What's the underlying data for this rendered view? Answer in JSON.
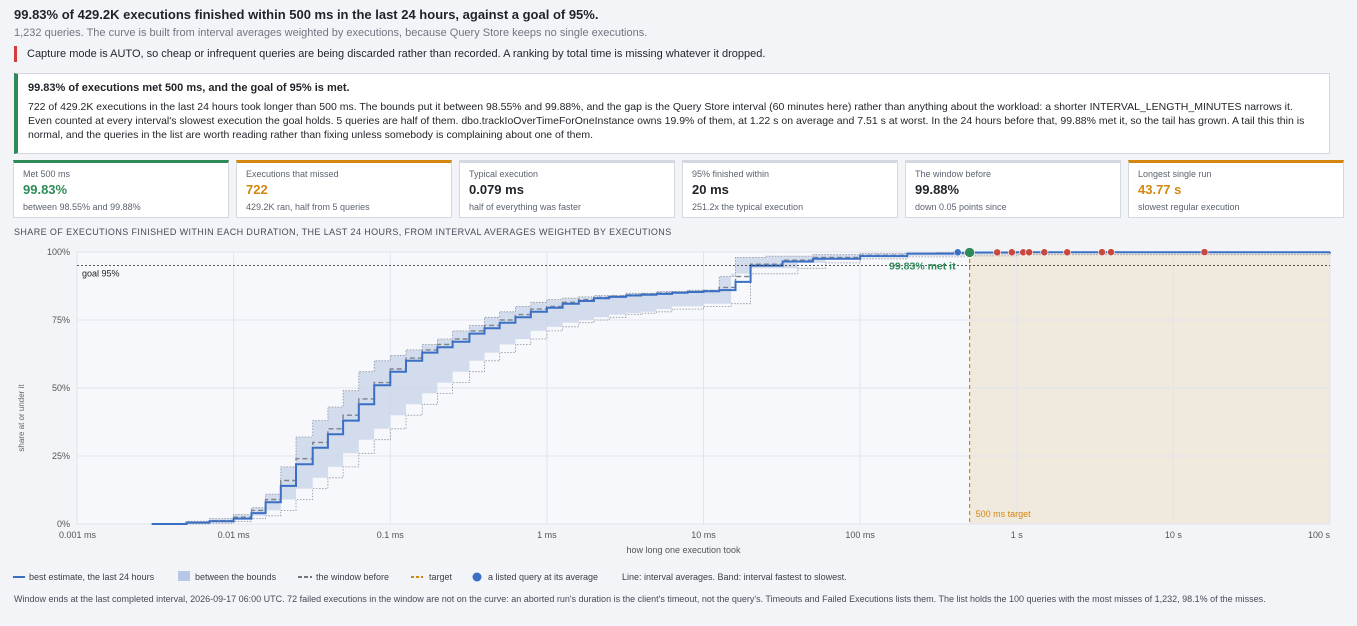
{
  "headline": "99.83% of 429.2K executions finished within 500 ms in the last 24 hours, against a goal of 95%.",
  "subline": "1,232 queries. The curve is built from interval averages weighted by executions, because Query Store keeps no single executions.",
  "warning": "Capture mode is AUTO, so cheap or infrequent queries are being discarded rather than recorded. A ranking by total time is missing whatever it dropped.",
  "verdict": {
    "title": "99.83% of executions met 500 ms, and the goal of 95% is met.",
    "body": "722 of 429.2K executions in the last 24 hours took longer than 500 ms. The bounds put it between 98.55% and 99.88%, and the gap is the Query Store interval (60 minutes here) rather than anything about the workload: a shorter INTERVAL_LENGTH_MINUTES narrows it. Even counted at every interval's slowest execution the goal holds. 5 queries are half of them. dbo.trackIoOverTimeForOneInstance owns 19.9% of them, at 1.22 s on average and 7.51 s at worst. In the 24 hours before that, 99.88% met it, so the tail has grown. A tail this thin is normal, and the queries in the list are worth reading rather than fixing unless somebody is complaining about one of them."
  },
  "cards": [
    {
      "label": "Met 500 ms",
      "value": "99.83%",
      "sub": "between 98.55% and 99.88%",
      "accent": "#2e8b57",
      "value_color": "#2e8b57"
    },
    {
      "label": "Executions that missed",
      "value": "722",
      "sub": "429.2K ran, half from 5 queries",
      "accent": "#d4870f",
      "value_color": "#d4870f"
    },
    {
      "label": "Typical execution",
      "value": "0.079 ms",
      "sub": "half of everything was faster",
      "accent": "#d4d8e0",
      "value_color": "#1f2328"
    },
    {
      "label": "95% finished within",
      "value": "20 ms",
      "sub": "251.2x the typical execution",
      "accent": "#d4d8e0",
      "value_color": "#1f2328"
    },
    {
      "label": "The window before",
      "value": "99.88%",
      "sub": "down 0.05 points since",
      "accent": "#d4d8e0",
      "value_color": "#1f2328"
    },
    {
      "label": "Longest single run",
      "value": "43.77 s",
      "sub": "slowest regular execution",
      "accent": "#d4870f",
      "value_color": "#d4870f"
    }
  ],
  "chart_title": "SHARE OF EXECUTIONS FINISHED WITHIN EACH DURATION, THE LAST 24 HOURS, FROM INTERVAL AVERAGES WEIGHTED BY EXECUTIONS",
  "chart_data": {
    "type": "line",
    "xscale": "log",
    "xlim_ms": [
      0.001,
      100000
    ],
    "ylim": [
      0,
      100
    ],
    "xlabel": "how long one execution took",
    "ylabel": "share at or under it",
    "x_ticks": [
      {
        "ms": 0.001,
        "label": "0.001 ms"
      },
      {
        "ms": 0.01,
        "label": "0.01 ms"
      },
      {
        "ms": 0.1,
        "label": "0.1 ms"
      },
      {
        "ms": 1,
        "label": "1 ms"
      },
      {
        "ms": 10,
        "label": "10 ms"
      },
      {
        "ms": 100,
        "label": "100 ms"
      },
      {
        "ms": 1000,
        "label": "1 s"
      },
      {
        "ms": 10000,
        "label": "10 s"
      },
      {
        "ms": 100000,
        "label": "100 s"
      }
    ],
    "y_ticks": [
      {
        "v": 0,
        "label": "0%"
      },
      {
        "v": 25,
        "label": "25%"
      },
      {
        "v": 50,
        "label": "50%"
      },
      {
        "v": 75,
        "label": "75%"
      },
      {
        "v": 100,
        "label": "100%"
      }
    ],
    "goal": {
      "value": 95,
      "label": "goal 95%"
    },
    "target": {
      "ms": 500,
      "label": "500 ms target"
    },
    "met_annotation": {
      "ms": 500,
      "value": 99.83,
      "label": "99.83% met it"
    },
    "best_estimate": [
      [
        0.003,
        0
      ],
      [
        0.005,
        0.5
      ],
      [
        0.007,
        1
      ],
      [
        0.01,
        2
      ],
      [
        0.013,
        4
      ],
      [
        0.016,
        8
      ],
      [
        0.02,
        14
      ],
      [
        0.025,
        22
      ],
      [
        0.032,
        28
      ],
      [
        0.04,
        33
      ],
      [
        0.05,
        38
      ],
      [
        0.063,
        44
      ],
      [
        0.079,
        51
      ],
      [
        0.1,
        56
      ],
      [
        0.126,
        60
      ],
      [
        0.16,
        63
      ],
      [
        0.2,
        65
      ],
      [
        0.25,
        67
      ],
      [
        0.32,
        70
      ],
      [
        0.4,
        72
      ],
      [
        0.5,
        74
      ],
      [
        0.63,
        76
      ],
      [
        0.79,
        78
      ],
      [
        1,
        79.5
      ],
      [
        1.26,
        81
      ],
      [
        1.6,
        82
      ],
      [
        2,
        83
      ],
      [
        2.5,
        83.5
      ],
      [
        3.2,
        84
      ],
      [
        4,
        84.3
      ],
      [
        5,
        84.6
      ],
      [
        6.3,
        85
      ],
      [
        7.9,
        85.3
      ],
      [
        10,
        85.6
      ],
      [
        12.6,
        86
      ],
      [
        16,
        89
      ],
      [
        20,
        95
      ],
      [
        32,
        96.5
      ],
      [
        50,
        97.5
      ],
      [
        100,
        98.5
      ],
      [
        200,
        99.4
      ],
      [
        400,
        99.7
      ],
      [
        500,
        99.83
      ],
      [
        1000,
        99.9
      ],
      [
        100000,
        100
      ]
    ],
    "bounds_upper": [
      [
        0.003,
        0
      ],
      [
        0.005,
        1
      ],
      [
        0.007,
        2
      ],
      [
        0.01,
        3.5
      ],
      [
        0.013,
        6
      ],
      [
        0.016,
        11
      ],
      [
        0.02,
        21
      ],
      [
        0.025,
        32
      ],
      [
        0.032,
        38
      ],
      [
        0.04,
        43
      ],
      [
        0.05,
        49
      ],
      [
        0.063,
        56
      ],
      [
        0.079,
        60
      ],
      [
        0.1,
        62
      ],
      [
        0.126,
        64
      ],
      [
        0.16,
        66
      ],
      [
        0.2,
        68
      ],
      [
        0.25,
        71
      ],
      [
        0.32,
        73
      ],
      [
        0.4,
        76
      ],
      [
        0.5,
        78
      ],
      [
        0.63,
        80
      ],
      [
        0.79,
        81.5
      ],
      [
        1,
        82.5
      ],
      [
        1.26,
        83
      ],
      [
        1.6,
        83.5
      ],
      [
        2,
        84
      ],
      [
        3.2,
        84.8
      ],
      [
        5,
        85.5
      ],
      [
        7.9,
        86
      ],
      [
        12.6,
        91
      ],
      [
        16,
        98
      ],
      [
        25,
        98.5
      ],
      [
        50,
        99
      ],
      [
        100,
        99.5
      ],
      [
        300,
        99.8
      ],
      [
        500,
        99.88
      ],
      [
        100000,
        100
      ]
    ],
    "bounds_lower": [
      [
        0.005,
        0
      ],
      [
        0.007,
        0.3
      ],
      [
        0.01,
        1
      ],
      [
        0.013,
        2
      ],
      [
        0.016,
        3
      ],
      [
        0.02,
        5
      ],
      [
        0.025,
        9
      ],
      [
        0.032,
        13
      ],
      [
        0.04,
        17
      ],
      [
        0.05,
        21
      ],
      [
        0.063,
        26
      ],
      [
        0.079,
        31
      ],
      [
        0.1,
        35
      ],
      [
        0.126,
        40
      ],
      [
        0.16,
        44
      ],
      [
        0.2,
        48
      ],
      [
        0.25,
        52
      ],
      [
        0.32,
        56
      ],
      [
        0.4,
        60
      ],
      [
        0.5,
        63
      ],
      [
        0.63,
        66
      ],
      [
        0.79,
        68
      ],
      [
        1,
        71
      ],
      [
        1.26,
        72.5
      ],
      [
        1.6,
        74
      ],
      [
        2,
        75
      ],
      [
        2.5,
        76
      ],
      [
        3.2,
        77
      ],
      [
        4,
        77.5
      ],
      [
        5,
        78
      ],
      [
        6.3,
        79
      ],
      [
        10,
        80
      ],
      [
        15,
        81
      ],
      [
        20,
        92
      ],
      [
        40,
        94
      ],
      [
        60,
        96
      ],
      [
        100,
        97.5
      ],
      [
        200,
        98.2
      ],
      [
        500,
        98.55
      ],
      [
        1000,
        99
      ],
      [
        100000,
        100
      ]
    ],
    "window_before": [
      [
        0.003,
        0
      ],
      [
        0.005,
        0.6
      ],
      [
        0.007,
        1.2
      ],
      [
        0.01,
        2.5
      ],
      [
        0.013,
        5
      ],
      [
        0.016,
        9
      ],
      [
        0.02,
        16
      ],
      [
        0.025,
        24
      ],
      [
        0.032,
        30
      ],
      [
        0.04,
        35
      ],
      [
        0.05,
        40
      ],
      [
        0.063,
        46
      ],
      [
        0.079,
        52
      ],
      [
        0.1,
        57
      ],
      [
        0.126,
        61
      ],
      [
        0.16,
        64
      ],
      [
        0.2,
        66
      ],
      [
        0.25,
        68
      ],
      [
        0.32,
        71
      ],
      [
        0.4,
        73
      ],
      [
        0.5,
        75
      ],
      [
        0.63,
        77
      ],
      [
        0.79,
        79
      ],
      [
        1,
        80
      ],
      [
        1.26,
        81.5
      ],
      [
        1.6,
        82.5
      ],
      [
        2,
        83.3
      ],
      [
        2.5,
        83.8
      ],
      [
        3.2,
        84.2
      ],
      [
        4,
        84.6
      ],
      [
        5,
        84.9
      ],
      [
        6.3,
        85.2
      ],
      [
        7.9,
        85.5
      ],
      [
        10,
        85.8
      ],
      [
        12.6,
        87
      ],
      [
        16,
        91
      ],
      [
        20,
        95.5
      ],
      [
        32,
        97
      ],
      [
        50,
        98
      ],
      [
        100,
        98.8
      ],
      [
        200,
        99.5
      ],
      [
        500,
        99.88
      ],
      [
        1000,
        99.92
      ],
      [
        100000,
        100
      ]
    ],
    "listed_queries": [
      {
        "ms": 420,
        "value": 99.9,
        "color": "#3a6fc4"
      },
      {
        "ms": 500,
        "value": 99.83,
        "color": "#2e8b57"
      },
      {
        "ms": 750,
        "value": 99.86,
        "color": "#c8483d"
      },
      {
        "ms": 930,
        "value": 99.87,
        "color": "#c8483d"
      },
      {
        "ms": 1100,
        "value": 99.88,
        "color": "#c8483d"
      },
      {
        "ms": 1200,
        "value": 99.88,
        "color": "#c8483d"
      },
      {
        "ms": 1500,
        "value": 99.89,
        "color": "#c8483d"
      },
      {
        "ms": 2100,
        "value": 99.9,
        "color": "#c8483d"
      },
      {
        "ms": 3500,
        "value": 99.92,
        "color": "#c8483d"
      },
      {
        "ms": 4000,
        "value": 99.92,
        "color": "#c8483d"
      },
      {
        "ms": 15800,
        "value": 99.95,
        "color": "#c8483d"
      }
    ]
  },
  "legend": {
    "best": "best estimate, the last 24 hours",
    "bounds": "between the bounds",
    "before": "the window before",
    "target": "target",
    "query": "a listed query at its average",
    "note": "Line: interval averages. Band: interval fastest to slowest."
  },
  "footnote": "Window ends at the last completed interval, 2026-09-17 06:00 UTC.   72 failed executions in the window are not on the curve: an aborted run's duration is the client's timeout, not the query's. Timeouts and Failed Executions lists them.   The list holds the 100 queries with the most misses of 1,232, 98.1% of the misses.",
  "colors": {
    "line": "#3a6fc4",
    "band": "#c9d5ea",
    "target": "#d4870f",
    "met": "#2e8b57",
    "miss": "#c8483d"
  }
}
